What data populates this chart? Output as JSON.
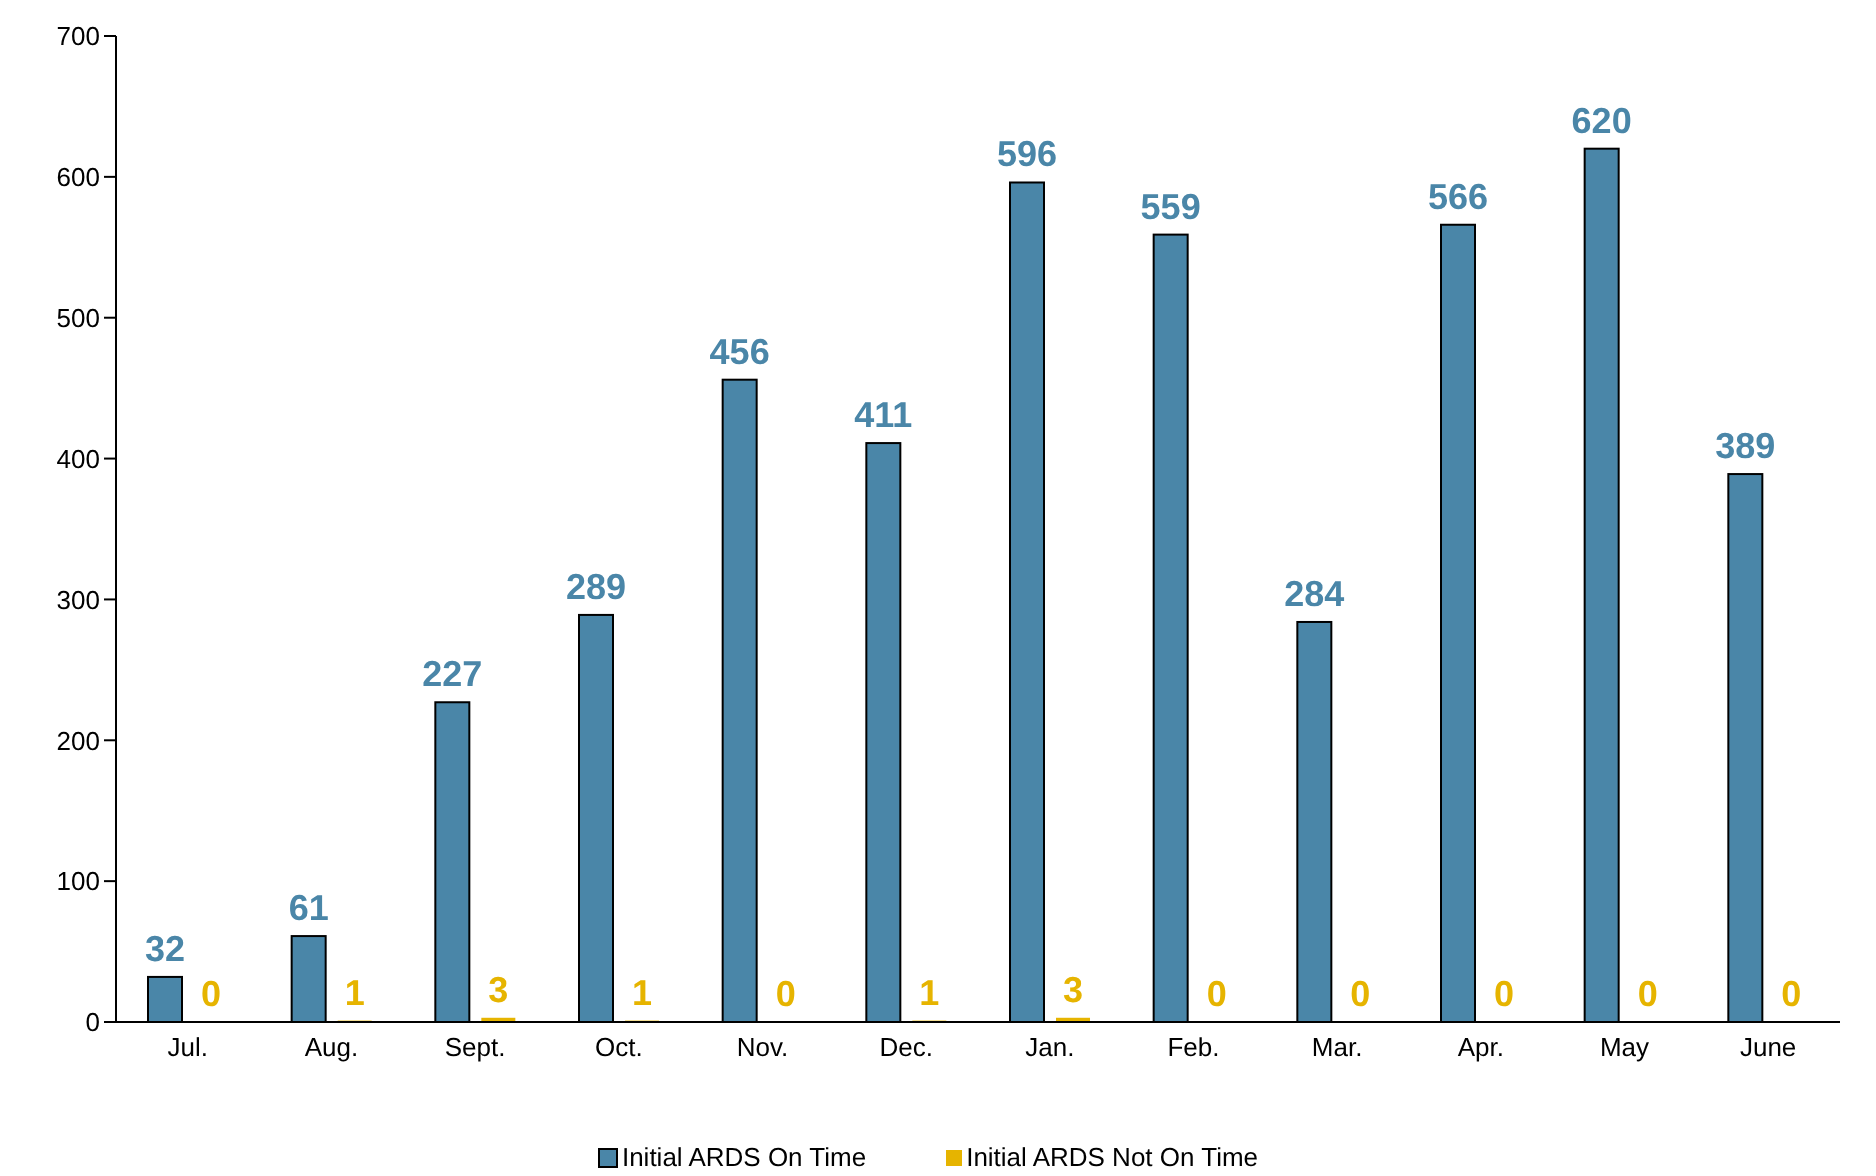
{
  "chart_data": {
    "type": "bar",
    "categories": [
      "Jul.",
      "Aug.",
      "Sept.",
      "Oct.",
      "Nov.",
      "Dec.",
      "Jan.",
      "Feb.",
      "Mar.",
      "Apr.",
      "May",
      "June"
    ],
    "series": [
      {
        "name": "Initial ARDS On Time",
        "color": "#4a86a8",
        "values": [
          32,
          61,
          227,
          289,
          456,
          411,
          596,
          559,
          284,
          566,
          620,
          389
        ]
      },
      {
        "name": "Initial ARDS Not On Time",
        "color": "#e6b400",
        "values": [
          0,
          1,
          3,
          1,
          0,
          1,
          3,
          0,
          0,
          0,
          0,
          0
        ]
      }
    ],
    "ylim": [
      0,
      700
    ],
    "yticks": [
      0,
      100,
      200,
      300,
      400,
      500,
      600,
      700
    ],
    "data_labels": true,
    "legend": "bottom",
    "grid": false
  }
}
